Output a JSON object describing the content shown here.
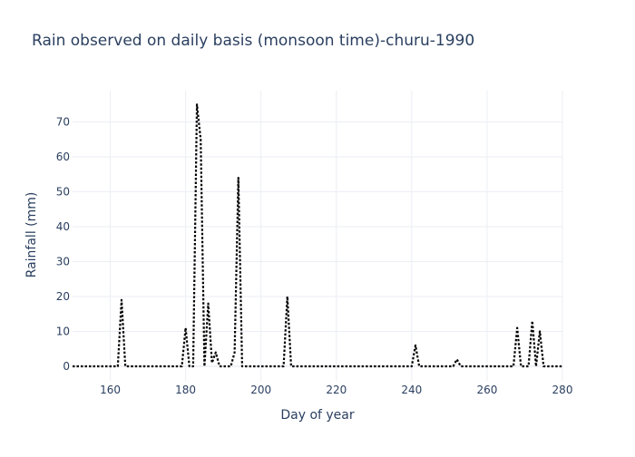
{
  "chart_data": {
    "type": "line",
    "title": "Rain observed on daily basis (monsoon time)-churu-1990",
    "xlabel": "Day of year",
    "ylabel": "Rainfall (mm)",
    "xlim": [
      150,
      280
    ],
    "ylim": [
      -4,
      79
    ],
    "xticks": [
      160,
      180,
      200,
      220,
      240,
      260,
      280
    ],
    "yticks": [
      0,
      10,
      20,
      30,
      40,
      50,
      60,
      70
    ],
    "grid": true,
    "legend": "none",
    "line_color": "#000000",
    "line_style": "dotted",
    "series": [
      {
        "x": [
          150,
          151,
          152,
          153,
          154,
          155,
          156,
          157,
          158,
          159,
          160,
          161,
          162,
          163,
          164,
          165,
          166,
          167,
          168,
          169,
          170,
          171,
          172,
          173,
          174,
          175,
          176,
          177,
          178,
          179,
          180,
          181,
          182,
          183,
          184,
          185,
          186,
          187,
          188,
          189,
          190,
          191,
          192,
          193,
          194,
          195,
          196,
          197,
          198,
          199,
          200,
          201,
          202,
          203,
          204,
          205,
          206,
          207,
          208,
          209,
          210,
          211,
          212,
          213,
          214,
          215,
          216,
          217,
          218,
          219,
          220,
          221,
          222,
          223,
          224,
          225,
          226,
          227,
          228,
          229,
          230,
          231,
          232,
          233,
          234,
          235,
          236,
          237,
          238,
          239,
          240,
          241,
          242,
          243,
          244,
          245,
          246,
          247,
          248,
          249,
          250,
          251,
          252,
          253,
          254,
          255,
          256,
          257,
          258,
          259,
          260,
          261,
          262,
          263,
          264,
          265,
          266,
          267,
          268,
          269,
          270,
          271,
          272,
          273,
          274,
          275,
          276,
          277,
          278,
          279,
          280
        ],
        "y": [
          0,
          0,
          0,
          0,
          0,
          0,
          0,
          0,
          0,
          0,
          0,
          0,
          0,
          19,
          0,
          0,
          0,
          0,
          0,
          0,
          0,
          0,
          0,
          0,
          0,
          0,
          0,
          0,
          0,
          0,
          11,
          0,
          0,
          75,
          65,
          0,
          18,
          1,
          4,
          0,
          0,
          0,
          0,
          4,
          54,
          0,
          0,
          0,
          0,
          0,
          0,
          0,
          0,
          0,
          0,
          0,
          0,
          20,
          0,
          0,
          0,
          0,
          0,
          0,
          0,
          0,
          0,
          0,
          0,
          0,
          0,
          0,
          0,
          0,
          0,
          0,
          0,
          0,
          0,
          0,
          0,
          0,
          0,
          0,
          0,
          0,
          0,
          0,
          0,
          0,
          0,
          6,
          0,
          0,
          0,
          0,
          0,
          0,
          0,
          0,
          0,
          0,
          2,
          0,
          0,
          0,
          0,
          0,
          0,
          0,
          0,
          0,
          0,
          0,
          0,
          0,
          0,
          0,
          11,
          0,
          0,
          0,
          13,
          0,
          10,
          0,
          0,
          0,
          0,
          0,
          0
        ]
      }
    ]
  }
}
